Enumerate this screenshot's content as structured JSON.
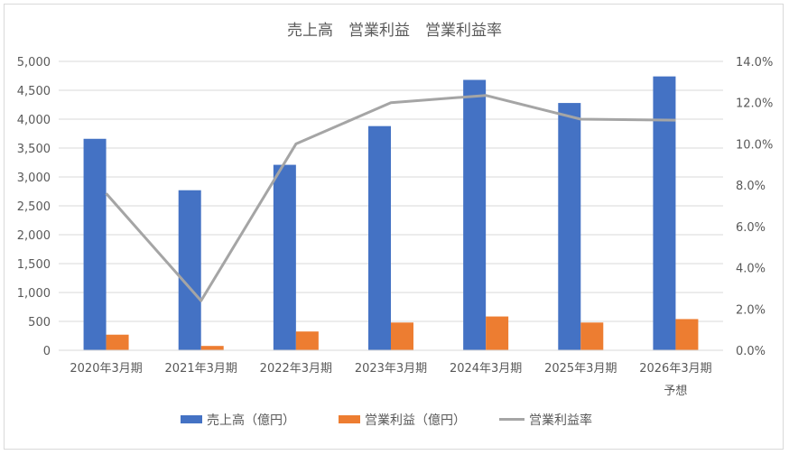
{
  "chart_data": {
    "type": "bar",
    "title": "売上高　営業利益　営業利益率",
    "categories": [
      "2020年3月期",
      "2021年3月期",
      "2022年3月期",
      "2023年3月期",
      "2024年3月期",
      "2025年3月期",
      "2026年3月期\n予想"
    ],
    "series": [
      {
        "name": "売上高（億円）",
        "type": "bar",
        "axis": "left",
        "color": "#4472c4",
        "values": [
          3660,
          2770,
          3210,
          3880,
          4680,
          4280,
          4740
        ]
      },
      {
        "name": "営業利益（億円）",
        "type": "bar",
        "axis": "left",
        "color": "#ed7d31",
        "values": [
          270,
          75,
          325,
          480,
          585,
          480,
          540
        ]
      },
      {
        "name": "営業利益率",
        "type": "line",
        "axis": "right",
        "color": "#a5a5a5",
        "values": [
          7.6,
          2.4,
          10.0,
          12.0,
          12.35,
          11.2,
          11.15
        ]
      }
    ],
    "y_left": {
      "min": 0,
      "max": 5000,
      "step": 500,
      "tick_labels": [
        "0",
        "500",
        "1,000",
        "1,500",
        "2,000",
        "2,500",
        "3,000",
        "3,500",
        "4,000",
        "4,500",
        "5,000"
      ]
    },
    "y_right": {
      "min": 0,
      "max": 14,
      "step": 2,
      "tick_labels": [
        "0.0%",
        "2.0%",
        "4.0%",
        "6.0%",
        "8.0%",
        "10.0%",
        "12.0%",
        "14.0%"
      ]
    },
    "grid": true,
    "legend_position": "bottom",
    "colors": {
      "gridline": "#d9d9d9",
      "text": "#595959"
    }
  }
}
